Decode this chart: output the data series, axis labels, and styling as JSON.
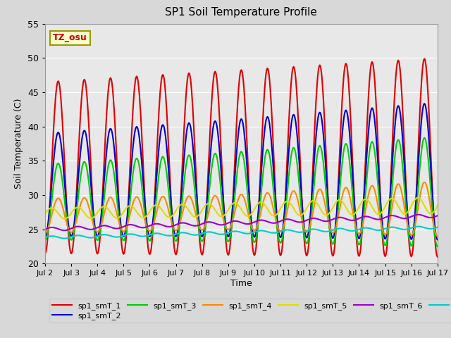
{
  "title": "SP1 Soil Temperature Profile",
  "xlabel": "Time",
  "ylabel": "Soil Temperature (C)",
  "ylim": [
    20,
    55
  ],
  "annotation": "TZ_osu",
  "series_colors": [
    "#dd0000",
    "#0000cc",
    "#00cc00",
    "#ff8800",
    "#dddd00",
    "#9900cc",
    "#00cccc"
  ],
  "series_labels": [
    "sp1_smT_1",
    "sp1_smT_2",
    "sp1_smT_3",
    "sp1_smT_4",
    "sp1_smT_5",
    "sp1_smT_6",
    "sp1_smT_7"
  ],
  "xtick_labels": [
    "Jul 2",
    "Jul 3",
    "Jul 4",
    "Jul 5",
    "Jul 6",
    "Jul 7",
    "Jul 8",
    "Jul 9",
    "Jul 10",
    "Jul 11",
    "Jul 12",
    "Jul 13",
    "Jul 14",
    "Jul 15",
    "Jul 16",
    "Jul 17"
  ],
  "xtick_positions": [
    0,
    24,
    48,
    72,
    96,
    120,
    144,
    168,
    192,
    216,
    240,
    264,
    288,
    312,
    336,
    360
  ],
  "n_points": 721,
  "bg_color": "#e8e8e8",
  "fig_bg": "#d8d8d8",
  "linewidth": 1.5,
  "grid_color": "#ffffff"
}
